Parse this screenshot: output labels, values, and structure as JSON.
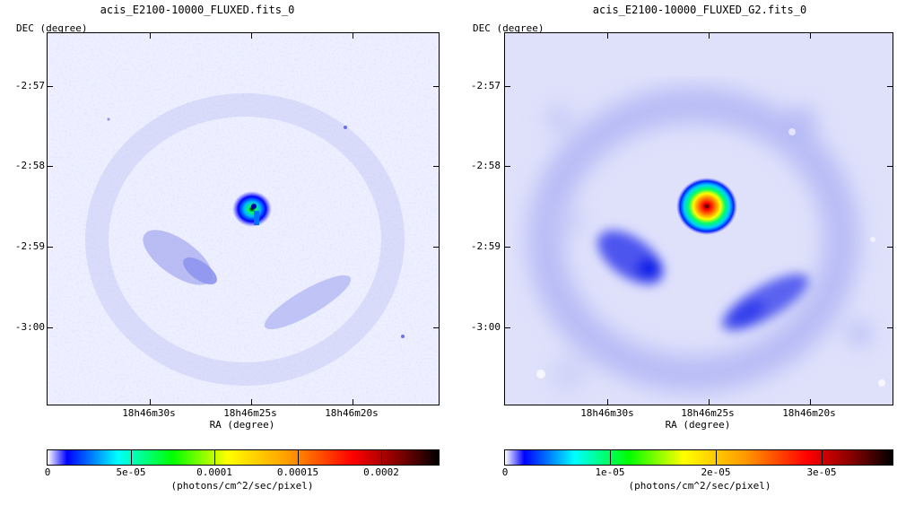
{
  "chart_data": [
    {
      "type": "heatmap",
      "title": "acis_E2100-10000_FLUXED.fits_0",
      "xlabel": "RA (degree)",
      "ylabel": "DEC (degree)",
      "x_ticks": [
        "18h46m30s",
        "18h46m25s",
        "18h46m20s"
      ],
      "y_ticks": [
        "-2:57",
        "-2:58",
        "-2:59",
        "-3:00"
      ],
      "colorbar": {
        "min": 0,
        "max": 0.00024,
        "ticks": [
          0,
          5e-05,
          0.0001,
          0.00015,
          0.0002
        ],
        "tick_labels": [
          "0",
          "5e-05",
          "0.0001",
          "0.00015",
          "0.0002"
        ],
        "units": "(photons/cm^2/sec/pixel)"
      },
      "colormap": [
        "#ffffff",
        "#0000ff",
        "#00ffff",
        "#00ff00",
        "#ffff00",
        "#ff8800",
        "#ff0000",
        "#000000"
      ]
    },
    {
      "type": "heatmap",
      "title": "acis_E2100-10000_FLUXED_G2.fits_0",
      "xlabel": "RA (degree)",
      "ylabel": "DEC (degree)",
      "x_ticks": [
        "18h46m30s",
        "18h46m25s",
        "18h46m20s"
      ],
      "y_ticks": [
        "-2:57",
        "-2:58",
        "-2:59",
        "-3:00"
      ],
      "colorbar": {
        "min": 0,
        "max": 3.7e-05,
        "ticks": [
          0,
          1e-05,
          2e-05,
          3e-05
        ],
        "tick_labels": [
          "0",
          "1e-05",
          "2e-05",
          "3e-05"
        ],
        "units": "(photons/cm^2/sec/pixel)"
      },
      "colormap": [
        "#ffffff",
        "#0000ff",
        "#00ffff",
        "#00ff00",
        "#ffff00",
        "#ff8800",
        "#ff0000",
        "#000000"
      ]
    }
  ]
}
